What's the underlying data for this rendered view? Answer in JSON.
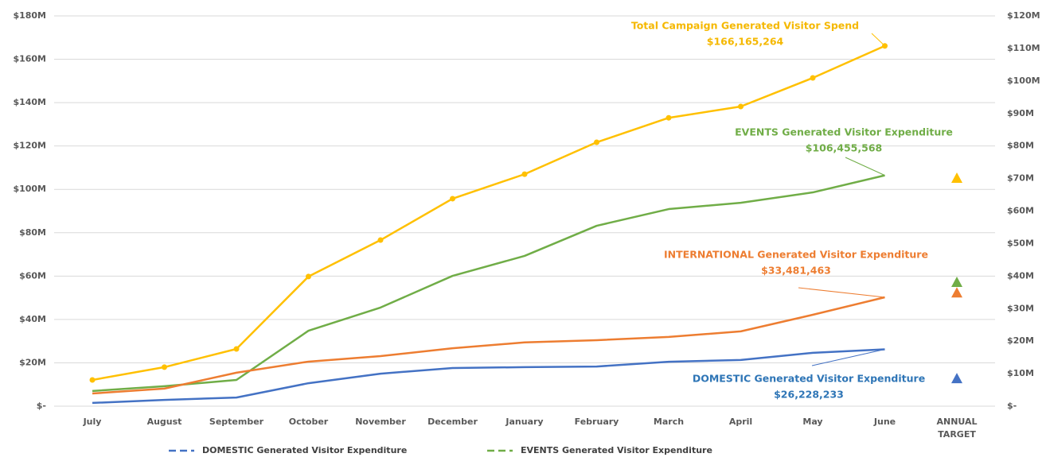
{
  "chart_data": {
    "type": "line",
    "categories": [
      "July",
      "August",
      "September",
      "October",
      "November",
      "December",
      "January",
      "February",
      "March",
      "April",
      "May",
      "June",
      "ANNUAL TARGET"
    ],
    "ylim": [
      0,
      180
    ],
    "yticks": [
      {
        "value": 0,
        "label": "$-"
      },
      {
        "value": 20,
        "label": "$20M"
      },
      {
        "value": 40,
        "label": "$40M"
      },
      {
        "value": 60,
        "label": "$60M"
      },
      {
        "value": 80,
        "label": "$80M"
      },
      {
        "value": 100,
        "label": "$100M"
      },
      {
        "value": 120,
        "label": "$120M"
      },
      {
        "value": 140,
        "label": "$140M"
      },
      {
        "value": 160,
        "label": "$160M"
      },
      {
        "value": 180,
        "label": "$180M"
      }
    ],
    "y2lim": [
      0,
      120
    ],
    "y2ticks": [
      {
        "value": 0,
        "label": "$-"
      },
      {
        "value": 10,
        "label": "$10M"
      },
      {
        "value": 20,
        "label": "$20M"
      },
      {
        "value": 30,
        "label": "$30M"
      },
      {
        "value": 40,
        "label": "$40M"
      },
      {
        "value": 50,
        "label": "$50M"
      },
      {
        "value": 60,
        "label": "$60M"
      },
      {
        "value": 70,
        "label": "$70M"
      },
      {
        "value": 80,
        "label": "$80M"
      },
      {
        "value": 90,
        "label": "$90M"
      },
      {
        "value": 100,
        "label": "$100M"
      },
      {
        "value": 110,
        "label": "$110M"
      },
      {
        "value": 120,
        "label": "$120M"
      }
    ],
    "grid": true,
    "legend": "bottom",
    "series": [
      {
        "name": "DOMESTIC Generated Visitor Expenditure",
        "color": "#4472c4",
        "label_color": "#2e75b6",
        "axis": "y",
        "markers": false,
        "in_legend": true,
        "values": [
          1.5,
          2.9,
          4,
          10.6,
          15,
          17.6,
          18,
          18.3,
          20.5,
          21.3,
          24.6,
          26.228233,
          null
        ],
        "value_labels": [
          null,
          null,
          null,
          null,
          null,
          null,
          null,
          null,
          null,
          null,
          null,
          "$26,228,233",
          null
        ],
        "target": 12.8
      },
      {
        "name": "EVENTS Generated Visitor Expenditure",
        "color": "#70ad47",
        "label_color": "#70ad47",
        "axis": "y",
        "markers": false,
        "in_legend": true,
        "values": [
          7,
          9.2,
          12.1,
          34.8,
          45.5,
          60.1,
          69.3,
          83.2,
          90.9,
          93.8,
          98.6,
          106.455568,
          null
        ],
        "value_labels": [
          null,
          null,
          null,
          null,
          null,
          null,
          null,
          null,
          null,
          null,
          null,
          "$106,455,568",
          null
        ],
        "target": 57.2
      },
      {
        "name": "INTERNATIONAL Generated Visitor Expenditure",
        "color": "#ed7d31",
        "label_color": "#ed7d31",
        "axis": "y2",
        "markers": false,
        "in_legend": false,
        "values": [
          3.9,
          5.4,
          10.3,
          13.7,
          15.4,
          17.8,
          19.6,
          20.3,
          21.3,
          23,
          28.1,
          33.481463,
          null
        ],
        "value_labels": [
          null,
          null,
          null,
          null,
          null,
          null,
          null,
          null,
          null,
          null,
          null,
          "$33,481,463",
          null
        ],
        "target": 34.9
      },
      {
        "name": "Total Campaign Generated Visitor Spend",
        "color": "#ffc000",
        "label_color": "#f5b800",
        "axis": "y",
        "markers": true,
        "in_legend": false,
        "values": [
          12.1,
          18,
          26.4,
          59.8,
          76.6,
          95.7,
          107,
          121.7,
          133,
          138.2,
          151.4,
          166.165264,
          null
        ],
        "value_labels": [
          null,
          null,
          null,
          null,
          null,
          null,
          null,
          null,
          null,
          null,
          null,
          "$166,165,264",
          null
        ],
        "target": 105.2
      }
    ]
  }
}
